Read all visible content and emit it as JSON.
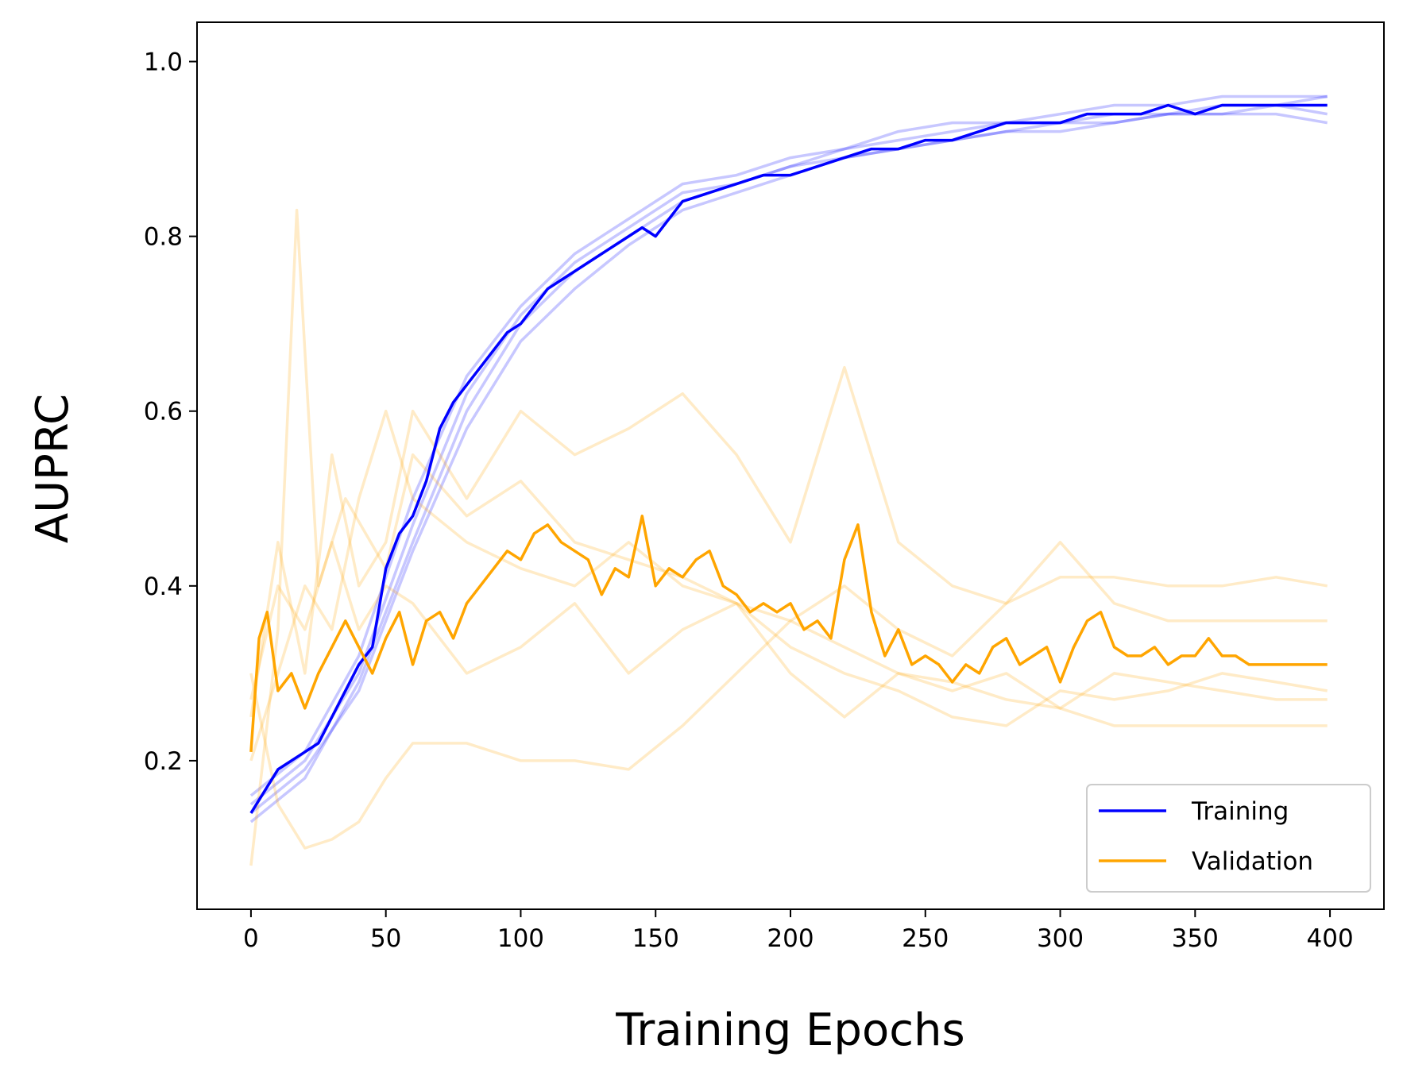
{
  "chart_data": {
    "type": "line",
    "title": "",
    "xlabel": "Training Epochs",
    "ylabel": "AUPRC",
    "xlim": [
      -20,
      420
    ],
    "ylim": [
      0.03,
      1.045
    ],
    "x_ticks": [
      0,
      50,
      100,
      150,
      200,
      250,
      300,
      350,
      400
    ],
    "y_ticks": [
      0.2,
      0.4,
      0.6,
      0.8,
      1.0
    ],
    "x_tick_labels": [
      "0",
      "50",
      "100",
      "150",
      "200",
      "250",
      "300",
      "350",
      "400"
    ],
    "y_tick_labels": [
      "0.2",
      "0.4",
      "0.6",
      "0.8",
      "1.0"
    ],
    "grid": false,
    "legend_position": "bottom-right",
    "colors": {
      "training": "#0000ff",
      "validation": "#ffa500"
    },
    "series": [
      {
        "name": "Training",
        "color": "#0000ff",
        "x": [
          0,
          10,
          20,
          25,
          30,
          40,
          45,
          50,
          55,
          60,
          65,
          70,
          75,
          80,
          85,
          90,
          95,
          100,
          105,
          110,
          115,
          120,
          125,
          130,
          135,
          140,
          145,
          150,
          155,
          160,
          170,
          180,
          190,
          200,
          210,
          220,
          230,
          240,
          250,
          260,
          270,
          280,
          290,
          300,
          310,
          320,
          330,
          340,
          350,
          360,
          370,
          380,
          390,
          399
        ],
        "y": [
          0.14,
          0.19,
          0.21,
          0.22,
          0.25,
          0.31,
          0.33,
          0.42,
          0.46,
          0.48,
          0.52,
          0.58,
          0.61,
          0.63,
          0.65,
          0.67,
          0.69,
          0.7,
          0.72,
          0.74,
          0.75,
          0.76,
          0.77,
          0.78,
          0.79,
          0.8,
          0.81,
          0.8,
          0.82,
          0.84,
          0.85,
          0.86,
          0.87,
          0.87,
          0.88,
          0.89,
          0.9,
          0.9,
          0.91,
          0.91,
          0.92,
          0.93,
          0.93,
          0.93,
          0.94,
          0.94,
          0.94,
          0.95,
          0.94,
          0.95,
          0.95,
          0.95,
          0.95,
          0.95
        ]
      },
      {
        "name": "Validation",
        "color": "#ffa500",
        "x": [
          0,
          3,
          6,
          10,
          15,
          20,
          25,
          30,
          35,
          40,
          45,
          50,
          55,
          60,
          65,
          70,
          75,
          80,
          85,
          90,
          95,
          100,
          105,
          110,
          115,
          120,
          125,
          130,
          135,
          140,
          145,
          150,
          155,
          160,
          165,
          170,
          175,
          180,
          185,
          190,
          195,
          200,
          205,
          210,
          215,
          220,
          225,
          230,
          235,
          240,
          245,
          250,
          255,
          260,
          265,
          270,
          275,
          280,
          285,
          290,
          295,
          300,
          305,
          310,
          315,
          320,
          325,
          330,
          335,
          340,
          345,
          350,
          355,
          360,
          365,
          370,
          375,
          380,
          385,
          390,
          395,
          399
        ],
        "y": [
          0.21,
          0.34,
          0.37,
          0.28,
          0.3,
          0.26,
          0.3,
          0.33,
          0.36,
          0.33,
          0.3,
          0.34,
          0.37,
          0.31,
          0.36,
          0.37,
          0.34,
          0.38,
          0.4,
          0.42,
          0.44,
          0.43,
          0.46,
          0.47,
          0.45,
          0.44,
          0.43,
          0.39,
          0.42,
          0.41,
          0.48,
          0.4,
          0.42,
          0.41,
          0.43,
          0.44,
          0.4,
          0.39,
          0.37,
          0.38,
          0.37,
          0.38,
          0.35,
          0.36,
          0.34,
          0.43,
          0.47,
          0.37,
          0.32,
          0.35,
          0.31,
          0.32,
          0.31,
          0.29,
          0.31,
          0.3,
          0.33,
          0.34,
          0.31,
          0.32,
          0.33,
          0.29,
          0.33,
          0.36,
          0.37,
          0.33,
          0.32,
          0.32,
          0.33,
          0.31,
          0.32,
          0.32,
          0.34,
          0.32,
          0.32,
          0.31,
          0.31,
          0.31,
          0.31,
          0.31,
          0.31,
          0.31
        ]
      }
    ],
    "faint_runs": [
      {
        "group": "training",
        "x": [
          0,
          20,
          40,
          60,
          80,
          100,
          120,
          140,
          160,
          180,
          200,
          220,
          240,
          260,
          280,
          300,
          320,
          340,
          360,
          380,
          399
        ],
        "y": [
          0.15,
          0.2,
          0.3,
          0.47,
          0.62,
          0.71,
          0.77,
          0.81,
          0.85,
          0.86,
          0.88,
          0.9,
          0.91,
          0.92,
          0.93,
          0.93,
          0.94,
          0.94,
          0.95,
          0.95,
          0.94
        ]
      },
      {
        "group": "training",
        "x": [
          0,
          20,
          40,
          60,
          80,
          100,
          120,
          140,
          160,
          180,
          200,
          220,
          240,
          260,
          280,
          300,
          320,
          340,
          360,
          380,
          399
        ],
        "y": [
          0.13,
          0.18,
          0.29,
          0.45,
          0.6,
          0.7,
          0.76,
          0.8,
          0.84,
          0.86,
          0.88,
          0.89,
          0.9,
          0.91,
          0.92,
          0.93,
          0.93,
          0.94,
          0.94,
          0.95,
          0.96
        ]
      },
      {
        "group": "training",
        "x": [
          0,
          20,
          40,
          60,
          80,
          100,
          120,
          140,
          160,
          180,
          200,
          220,
          240,
          260,
          280,
          300,
          320,
          340,
          360,
          380,
          399
        ],
        "y": [
          0.16,
          0.21,
          0.32,
          0.5,
          0.64,
          0.72,
          0.78,
          0.82,
          0.86,
          0.87,
          0.89,
          0.9,
          0.92,
          0.93,
          0.93,
          0.94,
          0.95,
          0.95,
          0.96,
          0.96,
          0.96
        ]
      },
      {
        "group": "training",
        "x": [
          0,
          20,
          40,
          60,
          80,
          100,
          120,
          140,
          160,
          180,
          200,
          220,
          240,
          260,
          280,
          300,
          320,
          340,
          360,
          380,
          399
        ],
        "y": [
          0.14,
          0.19,
          0.28,
          0.44,
          0.58,
          0.68,
          0.74,
          0.79,
          0.83,
          0.85,
          0.87,
          0.89,
          0.9,
          0.91,
          0.92,
          0.92,
          0.93,
          0.94,
          0.94,
          0.94,
          0.93
        ]
      },
      {
        "group": "validation",
        "x": [
          0,
          10,
          17,
          25,
          35,
          50,
          60,
          80,
          100,
          120,
          140,
          160,
          180,
          200,
          220,
          240,
          260,
          280,
          300,
          320,
          340,
          360,
          380,
          399
        ],
        "y": [
          0.08,
          0.35,
          0.83,
          0.4,
          0.5,
          0.42,
          0.55,
          0.48,
          0.52,
          0.45,
          0.43,
          0.41,
          0.38,
          0.36,
          0.33,
          0.3,
          0.29,
          0.27,
          0.26,
          0.24,
          0.24,
          0.24,
          0.24,
          0.24
        ]
      },
      {
        "group": "validation",
        "x": [
          0,
          10,
          20,
          30,
          40,
          50,
          60,
          80,
          100,
          120,
          140,
          160,
          180,
          200,
          220,
          240,
          260,
          280,
          300,
          320,
          340,
          360,
          380,
          399
        ],
        "y": [
          0.3,
          0.15,
          0.1,
          0.11,
          0.13,
          0.18,
          0.22,
          0.22,
          0.2,
          0.2,
          0.19,
          0.24,
          0.3,
          0.36,
          0.4,
          0.35,
          0.32,
          0.38,
          0.41,
          0.41,
          0.4,
          0.4,
          0.41,
          0.4
        ]
      },
      {
        "group": "validation",
        "x": [
          0,
          10,
          20,
          30,
          40,
          50,
          60,
          80,
          100,
          120,
          140,
          160,
          180,
          200,
          220,
          240,
          260,
          280,
          300,
          320,
          340,
          360,
          380,
          399
        ],
        "y": [
          0.25,
          0.45,
          0.3,
          0.55,
          0.4,
          0.45,
          0.6,
          0.5,
          0.6,
          0.55,
          0.58,
          0.62,
          0.55,
          0.45,
          0.65,
          0.45,
          0.4,
          0.38,
          0.45,
          0.38,
          0.36,
          0.36,
          0.36,
          0.36
        ]
      },
      {
        "group": "validation",
        "x": [
          0,
          10,
          20,
          30,
          40,
          50,
          60,
          80,
          100,
          120,
          140,
          160,
          180,
          200,
          220,
          240,
          260,
          280,
          300,
          320,
          340,
          360,
          380,
          399
        ],
        "y": [
          0.27,
          0.4,
          0.35,
          0.45,
          0.35,
          0.4,
          0.38,
          0.3,
          0.33,
          0.38,
          0.3,
          0.35,
          0.38,
          0.3,
          0.25,
          0.3,
          0.28,
          0.3,
          0.26,
          0.3,
          0.29,
          0.28,
          0.27,
          0.27
        ]
      },
      {
        "group": "validation",
        "x": [
          0,
          10,
          20,
          30,
          40,
          50,
          60,
          80,
          100,
          120,
          140,
          160,
          180,
          200,
          220,
          240,
          260,
          280,
          300,
          320,
          340,
          360,
          380,
          399
        ],
        "y": [
          0.2,
          0.3,
          0.4,
          0.35,
          0.5,
          0.6,
          0.5,
          0.45,
          0.42,
          0.4,
          0.45,
          0.4,
          0.38,
          0.33,
          0.3,
          0.28,
          0.25,
          0.24,
          0.28,
          0.27,
          0.28,
          0.3,
          0.29,
          0.28
        ]
      }
    ]
  }
}
